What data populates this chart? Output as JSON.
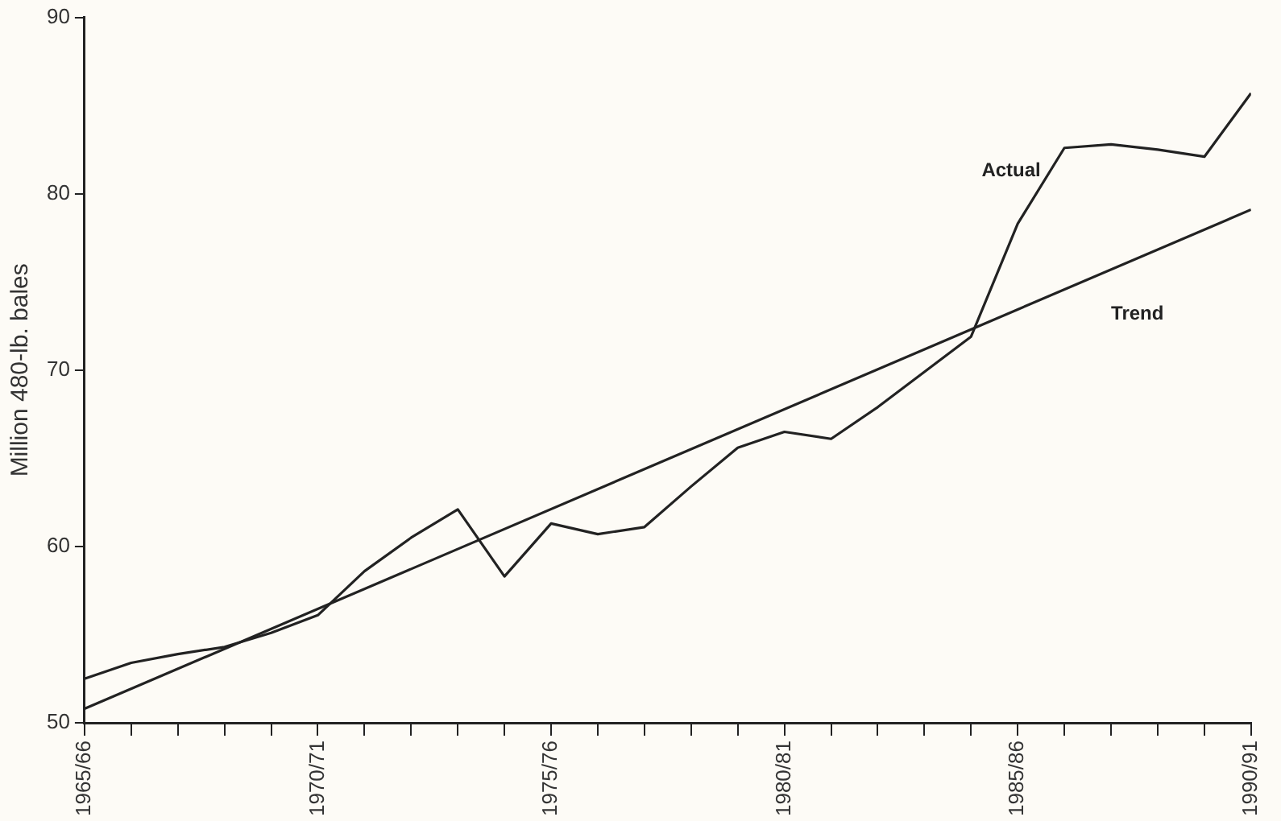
{
  "chart_data": {
    "type": "line",
    "ylabel": "Million 480-lb. bales",
    "categories": [
      "1965/66",
      null,
      null,
      null,
      null,
      "1970/71",
      null,
      null,
      null,
      null,
      "1975/76",
      null,
      null,
      null,
      null,
      "1980/81",
      null,
      null,
      null,
      null,
      "1985/86",
      null,
      null,
      null,
      null,
      "1990/91"
    ],
    "series": [
      {
        "name": "Actual",
        "color": "#222222",
        "values": [
          52.5,
          53.4,
          53.9,
          54.3,
          55.1,
          56.1,
          58.6,
          60.5,
          62.1,
          58.3,
          61.3,
          60.7,
          61.1,
          63.4,
          65.6,
          66.5,
          66.1,
          67.9,
          69.9,
          71.9,
          78.3,
          82.6,
          82.8,
          82.5,
          82.1,
          85.7
        ]
      },
      {
        "name": "Trend",
        "color": "#222222",
        "x": [
          "1965/66",
          "1990/91"
        ],
        "values": [
          50.8,
          79.1
        ]
      }
    ],
    "ylim": [
      50,
      90
    ],
    "yticks": [
      50,
      60,
      70,
      80,
      90
    ],
    "grid": false,
    "legend": false,
    "marker": "none",
    "line_style": "solid"
  }
}
